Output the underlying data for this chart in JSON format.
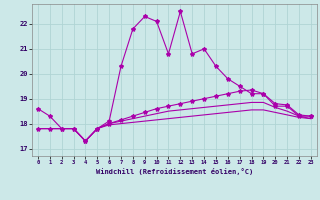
{
  "bg_color": "#cce8e8",
  "grid_color": "#aacccc",
  "line_color": "#aa00aa",
  "xlabel": "Windchill (Refroidissement éolien,°C)",
  "xlim": [
    -0.5,
    23.5
  ],
  "ylim": [
    16.7,
    22.8
  ],
  "yticks": [
    17,
    18,
    19,
    20,
    21,
    22
  ],
  "xticks": [
    0,
    1,
    2,
    3,
    4,
    5,
    6,
    7,
    8,
    9,
    10,
    11,
    12,
    13,
    14,
    15,
    16,
    17,
    18,
    19,
    20,
    21,
    22,
    23
  ],
  "hours": [
    0,
    1,
    2,
    3,
    4,
    5,
    6,
    7,
    8,
    9,
    10,
    11,
    12,
    13,
    14,
    15,
    16,
    17,
    18,
    19,
    20,
    21,
    22,
    23
  ],
  "line1_y": [
    18.6,
    18.3,
    17.8,
    17.8,
    17.3,
    17.8,
    18.1,
    20.3,
    21.8,
    22.3,
    22.1,
    20.8,
    22.5,
    20.8,
    21.0,
    20.3,
    19.8,
    19.5,
    19.2,
    19.2,
    18.7,
    18.7,
    18.3,
    18.3
  ],
  "line2_y": [
    17.8,
    17.8,
    17.8,
    17.8,
    17.3,
    17.8,
    18.0,
    18.15,
    18.3,
    18.45,
    18.6,
    18.7,
    18.8,
    18.9,
    19.0,
    19.1,
    19.2,
    19.3,
    19.35,
    19.2,
    18.8,
    18.75,
    18.35,
    18.3
  ],
  "line3_y": [
    17.8,
    17.8,
    17.8,
    17.8,
    17.3,
    17.8,
    18.0,
    18.1,
    18.2,
    18.3,
    18.4,
    18.5,
    18.55,
    18.6,
    18.65,
    18.7,
    18.75,
    18.8,
    18.85,
    18.85,
    18.65,
    18.5,
    18.3,
    18.2
  ],
  "line4_y": [
    17.8,
    17.8,
    17.8,
    17.8,
    17.3,
    17.8,
    17.95,
    18.0,
    18.05,
    18.1,
    18.15,
    18.2,
    18.25,
    18.3,
    18.35,
    18.4,
    18.45,
    18.5,
    18.55,
    18.55,
    18.45,
    18.35,
    18.25,
    18.2
  ]
}
